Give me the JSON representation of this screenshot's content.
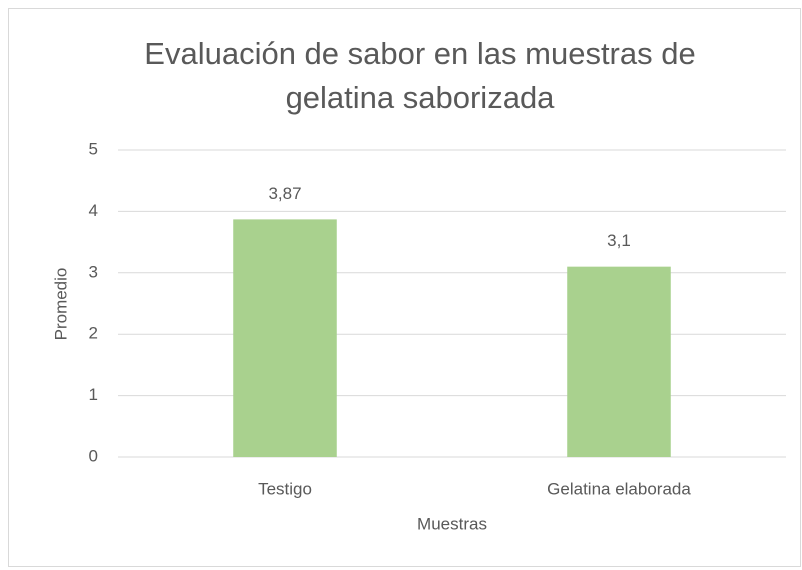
{
  "chart_data": {
    "type": "bar",
    "title": "Evaluación de sabor en las muestras de gelatina saborizada",
    "x_label": "Muestras",
    "y_label": "Promedio",
    "categories": [
      "Testigo",
      "Gelatina elaborada"
    ],
    "values": [
      3.87,
      3.1
    ],
    "value_labels": [
      "3,87",
      "3,1"
    ],
    "color": "#a9d18e",
    "ylim": [
      0,
      5
    ],
    "yticks": [
      0,
      1,
      2,
      3,
      4,
      5
    ],
    "grid": true
  }
}
